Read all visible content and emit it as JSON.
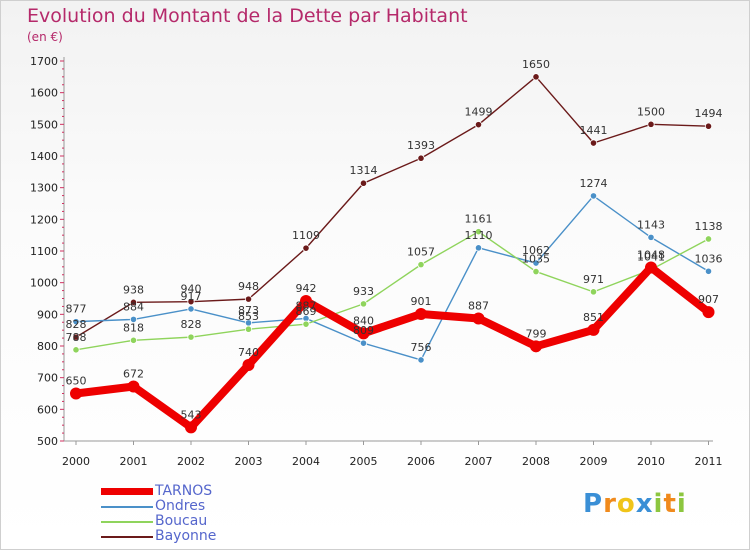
{
  "title": "Evolution du Montant de la Dette par Habitant",
  "unit": "(en €)",
  "chart_data": {
    "type": "line",
    "x": [
      "2000",
      "2001",
      "2002",
      "2003",
      "2004",
      "2005",
      "2006",
      "2007",
      "2008",
      "2009",
      "2010",
      "2011"
    ],
    "yticks": [
      500,
      600,
      700,
      800,
      900,
      1000,
      1100,
      1200,
      1300,
      1400,
      1500,
      1600,
      1700
    ],
    "ylim": [
      500,
      1700
    ],
    "grid": false,
    "legend_position": "bottom-left",
    "series": [
      {
        "name": "TARNOS",
        "values": [
          650,
          672,
          543,
          740,
          942,
          840,
          901,
          887,
          799,
          851,
          1048,
          907
        ],
        "color": "#ee0000"
      },
      {
        "name": "Ondres",
        "values": [
          877,
          884,
          917,
          873,
          887,
          809,
          756,
          1110,
          1062,
          1274,
          1143,
          1036
        ],
        "color": "#4a90c8"
      },
      {
        "name": "Boucau",
        "values": [
          788,
          818,
          828,
          853,
          869,
          933,
          1057,
          1161,
          1035,
          971,
          1041,
          1138
        ],
        "color": "#8fd45c"
      },
      {
        "name": "Bayonne",
        "values": [
          828,
          938,
          940,
          948,
          1109,
          1314,
          1393,
          1499,
          1650,
          1441,
          1500,
          1494
        ],
        "color": "#6b1a1a"
      }
    ]
  },
  "logo": {
    "letters": [
      "P",
      "r",
      "o",
      "x",
      "i",
      "t",
      "i"
    ],
    "colors": [
      "#3a8fd6",
      "#f08a1c",
      "#f0c419",
      "#3a8fd6",
      "#8cc63f",
      "#f08a1c",
      "#8cc63f"
    ]
  }
}
